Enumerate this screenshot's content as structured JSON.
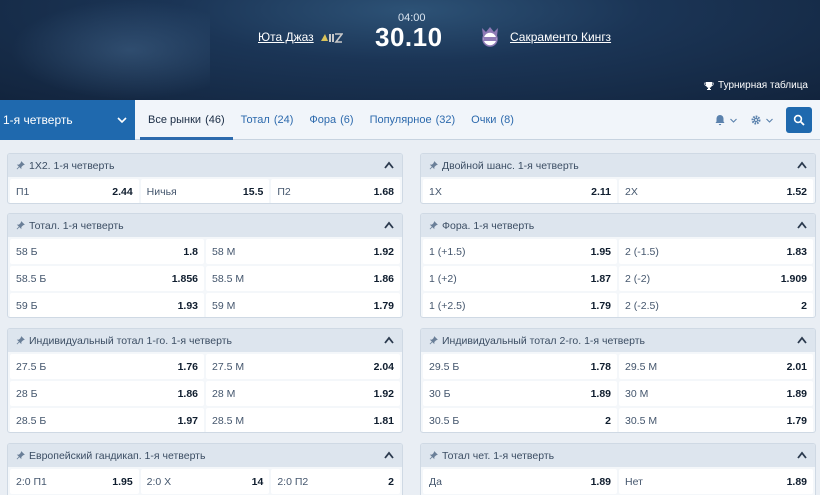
{
  "event": {
    "time": "04:00",
    "score": "30.10",
    "home_team": "Юта Джаз",
    "away_team": "Сакраменто Кингз",
    "standings": "Турнирная таблица"
  },
  "nav": {
    "period": "1-я четверть",
    "tabs": [
      {
        "label": "Все рынки",
        "count": "(46)"
      },
      {
        "label": "Тотал",
        "count": "(24)"
      },
      {
        "label": "Фора",
        "count": "(6)"
      },
      {
        "label": "Популярное",
        "count": "(32)"
      },
      {
        "label": "Очки",
        "count": "(8)"
      }
    ]
  },
  "markets": [
    {
      "title": "1X2. 1-я четверть",
      "rows": [
        [
          {
            "l": "П1",
            "v": "2.44"
          },
          {
            "l": "Ничья",
            "v": "15.5"
          },
          {
            "l": "П2",
            "v": "1.68"
          }
        ]
      ]
    },
    {
      "title": "Двойной шанс. 1-я четверть",
      "rows": [
        [
          {
            "l": "1X",
            "v": "2.11"
          },
          {
            "l": "2X",
            "v": "1.52"
          }
        ]
      ]
    },
    {
      "title": "Тотал. 1-я четверть",
      "rows": [
        [
          {
            "l": "58 Б",
            "v": "1.8"
          },
          {
            "l": "58 М",
            "v": "1.92"
          }
        ],
        [
          {
            "l": "58.5 Б",
            "v": "1.856"
          },
          {
            "l": "58.5 М",
            "v": "1.86"
          }
        ],
        [
          {
            "l": "59 Б",
            "v": "1.93"
          },
          {
            "l": "59 М",
            "v": "1.79"
          }
        ]
      ]
    },
    {
      "title": "Фора. 1-я четверть",
      "rows": [
        [
          {
            "l": "1 (+1.5)",
            "v": "1.95"
          },
          {
            "l": "2 (-1.5)",
            "v": "1.83"
          }
        ],
        [
          {
            "l": "1 (+2)",
            "v": "1.87"
          },
          {
            "l": "2 (-2)",
            "v": "1.909"
          }
        ],
        [
          {
            "l": "1 (+2.5)",
            "v": "1.79"
          },
          {
            "l": "2 (-2.5)",
            "v": "2"
          }
        ]
      ]
    },
    {
      "title": "Индивидуальный тотал 1-го. 1-я четверть",
      "rows": [
        [
          {
            "l": "27.5 Б",
            "v": "1.76"
          },
          {
            "l": "27.5 М",
            "v": "2.04"
          }
        ],
        [
          {
            "l": "28 Б",
            "v": "1.86"
          },
          {
            "l": "28 М",
            "v": "1.92"
          }
        ],
        [
          {
            "l": "28.5 Б",
            "v": "1.97"
          },
          {
            "l": "28.5 М",
            "v": "1.81"
          }
        ]
      ]
    },
    {
      "title": "Индивидуальный тотал 2-го. 1-я четверть",
      "rows": [
        [
          {
            "l": "29.5 Б",
            "v": "1.78"
          },
          {
            "l": "29.5 М",
            "v": "2.01"
          }
        ],
        [
          {
            "l": "30 Б",
            "v": "1.89"
          },
          {
            "l": "30 М",
            "v": "1.89"
          }
        ],
        [
          {
            "l": "30.5 Б",
            "v": "2"
          },
          {
            "l": "30.5 М",
            "v": "1.79"
          }
        ]
      ]
    },
    {
      "title": "Европейский гандикап. 1-я четверть",
      "rows": [
        [
          {
            "l": "2:0 П1",
            "v": "1.95"
          },
          {
            "l": "2:0 X",
            "v": "14"
          },
          {
            "l": "2:0 П2",
            "v": "2"
          }
        ]
      ]
    },
    {
      "title": "Тотал чет. 1-я четверть",
      "rows": [
        [
          {
            "l": "Да",
            "v": "1.89"
          },
          {
            "l": "Нет",
            "v": "1.89"
          }
        ]
      ]
    }
  ],
  "colors": {
    "accent": "#1f69ae",
    "header_bg": "#1b3556",
    "market_head": "#dde5ee"
  }
}
